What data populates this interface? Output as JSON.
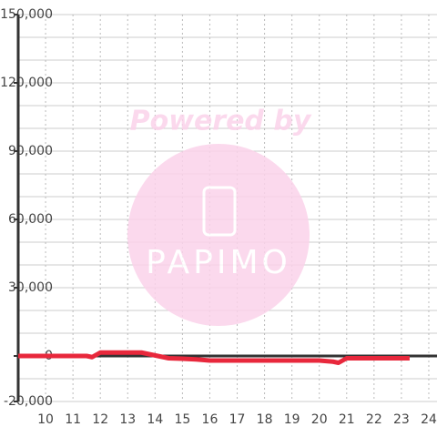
{
  "chart_data": {
    "type": "line",
    "watermark": {
      "line1": "Powered by",
      "line2": "PAPIMO"
    },
    "x": [
      9,
      11.5,
      11.7,
      12,
      13.5,
      14.5,
      15,
      15.5,
      16,
      20,
      20.5,
      20.7,
      21,
      23.3
    ],
    "series": [
      {
        "color": "#e8283c",
        "values": [
          0,
          0,
          -500,
          1500,
          1500,
          -1000,
          -1200,
          -1500,
          -2000,
          -2000,
          -2500,
          -3000,
          -1000,
          -1000
        ]
      }
    ],
    "xlim": [
      9,
      24.3
    ],
    "xticks": [
      10,
      11,
      12,
      13,
      14,
      15,
      16,
      17,
      18,
      19,
      20,
      21,
      22,
      23,
      24
    ],
    "ylim": [
      -20000,
      150000
    ],
    "yticks": [
      {
        "value": -20000,
        "label": "-20,000"
      },
      0,
      {
        "value": 30000,
        "label": "30,000"
      },
      {
        "value": 60000,
        "label": "60,000"
      },
      {
        "value": 90000,
        "label": "90,000"
      },
      {
        "value": 120000,
        "label": "120,000"
      },
      {
        "value": 150000,
        "label": "150,000"
      }
    ],
    "yminorticks": [
      -10000,
      10000,
      20000,
      40000,
      50000,
      70000,
      80000,
      100000,
      110000,
      130000,
      140000
    ],
    "grid": true
  }
}
